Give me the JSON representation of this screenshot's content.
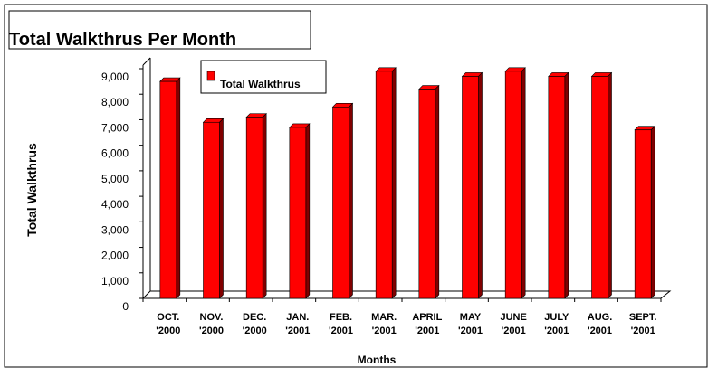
{
  "chart_data": {
    "type": "bar3d",
    "title": "Total Walkthrus Per Month",
    "x_label": "Months",
    "y_label": "Total Walkthrus",
    "categories": [
      [
        "OCT.",
        "'2000"
      ],
      [
        "NOV.",
        "'2000"
      ],
      [
        "DEC.",
        "'2000"
      ],
      [
        "JAN.",
        "'2001"
      ],
      [
        "FEB.",
        "'2001"
      ],
      [
        "MAR.",
        "'2001"
      ],
      [
        "APRIL",
        "'2001"
      ],
      [
        "MAY",
        "'2001"
      ],
      [
        "JUNE",
        "'2001"
      ],
      [
        "JULY",
        "'2001"
      ],
      [
        "AUG.",
        "'2001"
      ],
      [
        "SEPT.",
        "'2001"
      ]
    ],
    "series": [
      {
        "name": "Total Walkthrus",
        "color": "#ff0000",
        "values": [
          8500,
          6900,
          7100,
          6700,
          7500,
          8900,
          8200,
          8700,
          8900,
          8700,
          8700,
          6600
        ]
      }
    ],
    "ylim": [
      0,
      9000
    ],
    "yticks": [
      0,
      {
        "value": 1000,
        "label": "1,000"
      },
      {
        "value": 2000,
        "label": "2,000"
      },
      {
        "value": 3000,
        "label": "3,000"
      },
      {
        "value": 4000,
        "label": "4,000"
      },
      {
        "value": 5000,
        "label": "5,000"
      },
      {
        "value": 6000,
        "label": "6,000"
      },
      {
        "value": 7000,
        "label": "7,000"
      },
      {
        "value": 8000,
        "label": "8,000"
      },
      {
        "value": 9000,
        "label": "9,000"
      }
    ],
    "legend": "top-left"
  }
}
